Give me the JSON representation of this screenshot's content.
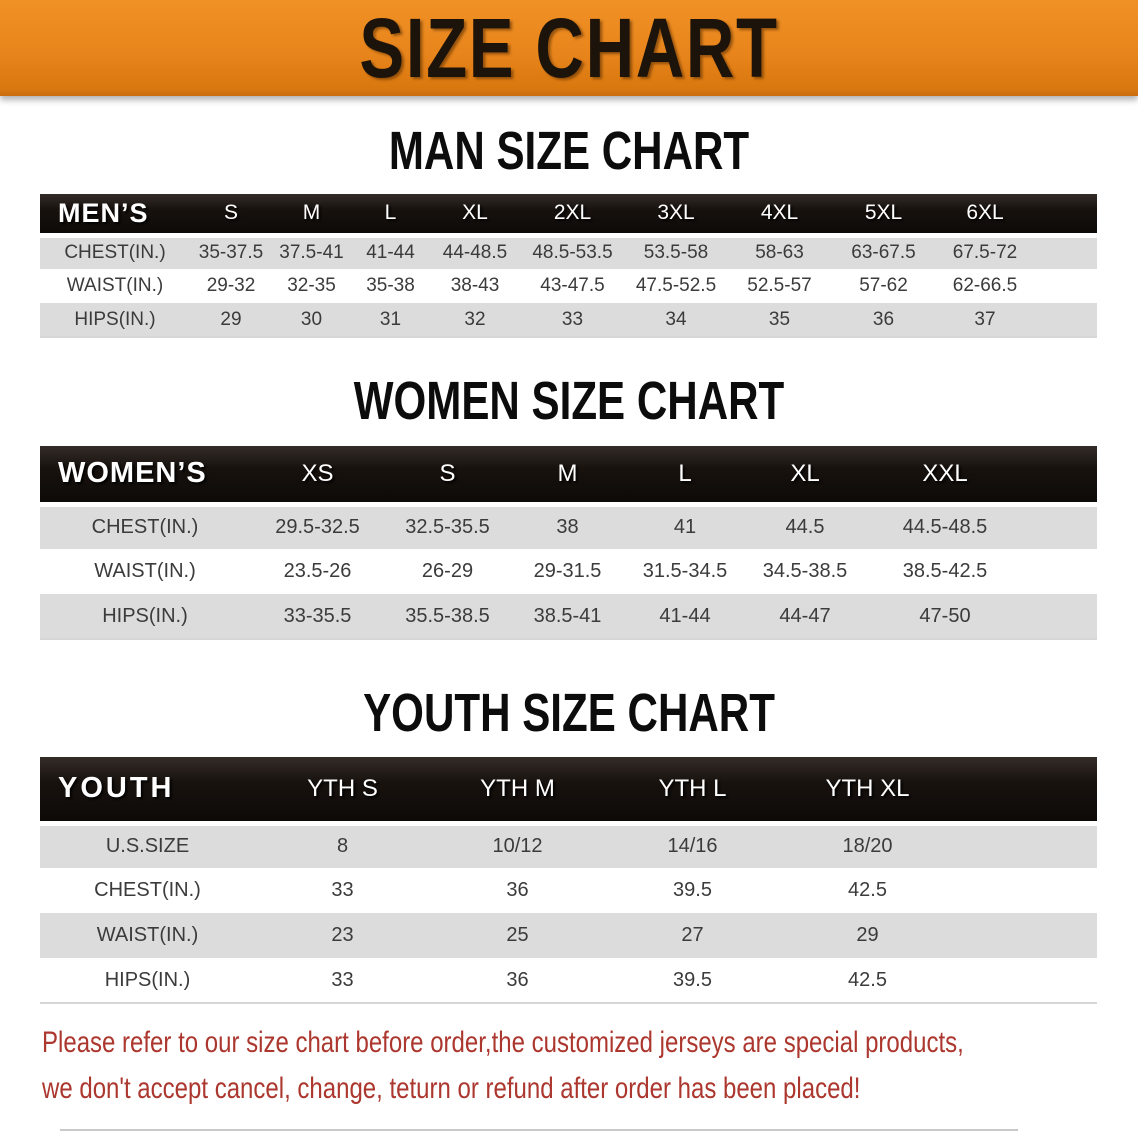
{
  "banner": {
    "title": "SIZE CHART",
    "bg_color": "#E8851C",
    "text_color": "#1C130A"
  },
  "sections": [
    {
      "id": "men",
      "heading": "MAN SIZE CHART",
      "table": {
        "header": [
          "MEN’S",
          "S",
          "M",
          "L",
          "XL",
          "2XL",
          "3XL",
          "4XL",
          "5XL",
          "6XL"
        ],
        "rows": [
          {
            "label": "CHEST(IN.)",
            "values": [
              "35-37.5",
              "37.5-41",
              "41-44",
              "44-48.5",
              "48.5-53.5",
              "53.5-58",
              "58-63",
              "63-67.5",
              "67.5-72"
            ]
          },
          {
            "label": "WAIST(IN.)",
            "values": [
              "29-32",
              "32-35",
              "35-38",
              "38-43",
              "43-47.5",
              "47.5-52.5",
              "52.5-57",
              "57-62",
              "62-66.5"
            ]
          },
          {
            "label": "HIPS(IN.)",
            "values": [
              "29",
              "30",
              "31",
              "32",
              "33",
              "34",
              "35",
              "36",
              "37"
            ]
          }
        ]
      }
    },
    {
      "id": "women",
      "heading": "WOMEN SIZE CHART",
      "table": {
        "header": [
          "WOMEN’S",
          "XS",
          "S",
          "M",
          "L",
          "XL",
          "XXL"
        ],
        "rows": [
          {
            "label": "CHEST(IN.)",
            "values": [
              "29.5-32.5",
              "32.5-35.5",
              "38",
              "41",
              "44.5",
              "44.5-48.5"
            ]
          },
          {
            "label": "WAIST(IN.)",
            "values": [
              "23.5-26",
              "26-29",
              "29-31.5",
              "31.5-34.5",
              "34.5-38.5",
              "38.5-42.5"
            ]
          },
          {
            "label": "HIPS(IN.)",
            "values": [
              "33-35.5",
              "35.5-38.5",
              "38.5-41",
              "41-44",
              "44-47",
              "47-50"
            ]
          }
        ]
      }
    },
    {
      "id": "youth",
      "heading": "YOUTH SIZE CHART",
      "table": {
        "header": [
          "YOUTH",
          "YTH S",
          "YTH M",
          "YTH L",
          "YTH XL"
        ],
        "rows": [
          {
            "label": "U.S.SIZE",
            "values": [
              "8",
              "10/12",
              "14/16",
              "18/20"
            ]
          },
          {
            "label": "CHEST(IN.)",
            "values": [
              "33",
              "36",
              "39.5",
              "42.5"
            ]
          },
          {
            "label": "WAIST(IN.)",
            "values": [
              "23",
              "25",
              "27",
              "29"
            ]
          },
          {
            "label": "HIPS(IN.)",
            "values": [
              "33",
              "36",
              "39.5",
              "42.5"
            ]
          }
        ]
      }
    }
  ],
  "disclaimer": {
    "line1": "Please refer to our size chart before order,the customized jerseys are special products,",
    "line2": "we don't accept cancel, change, teturn or refund after order has been placed!"
  },
  "colors": {
    "banner_bg": "#E8851C",
    "header_bar_bg": "#18120E",
    "row_alt_bg": "#DCDCDC",
    "row_text": "#3B3B3B",
    "disclaimer_text": "#AC372E"
  }
}
